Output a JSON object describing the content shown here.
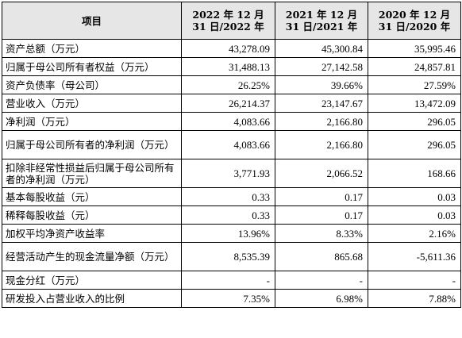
{
  "table": {
    "headers": [
      {
        "line1": "项目",
        "line2": ""
      },
      {
        "line1": "2022 年 12 月",
        "line2": "31 日/2022 年"
      },
      {
        "line1": "2021 年 12 月",
        "line2": "31 日/2021 年"
      },
      {
        "line1": "2020 年 12 月",
        "line2": "31 日/2020 年"
      }
    ],
    "rows": [
      {
        "label": "资产总额（万元）",
        "v2022": "43,278.09",
        "v2021": "45,300.84",
        "v2020": "35,995.46"
      },
      {
        "label": "归属于母公司所有者权益（万元）",
        "v2022": "31,488.13",
        "v2021": "27,142.58",
        "v2020": "24,857.81"
      },
      {
        "label": "资产负债率（母公司）",
        "v2022": "26.25%",
        "v2021": "39.66%",
        "v2020": "27.59%"
      },
      {
        "label": "营业收入（万元）",
        "v2022": "26,214.37",
        "v2021": "23,147.67",
        "v2020": "13,472.09"
      },
      {
        "label": "净利润（万元）",
        "v2022": "4,083.66",
        "v2021": "2,166.80",
        "v2020": "296.05"
      },
      {
        "label": "归属于母公司所有者的净利润（万元）",
        "v2022": "4,083.66",
        "v2021": "2,166.80",
        "v2020": "296.05"
      },
      {
        "label": "扣除非经常性损益后归属于母公司所有者的净利润（万元）",
        "v2022": "3,771.93",
        "v2021": "2,066.52",
        "v2020": "168.66"
      },
      {
        "label": "基本每股收益（元）",
        "v2022": "0.33",
        "v2021": "0.17",
        "v2020": "0.03"
      },
      {
        "label": "稀释每股收益（元）",
        "v2022": "0.33",
        "v2021": "0.17",
        "v2020": "0.03"
      },
      {
        "label": "加权平均净资产收益率",
        "v2022": "13.96%",
        "v2021": "8.33%",
        "v2020": "2.16%"
      },
      {
        "label": "经营活动产生的现金流量净额（万元）",
        "v2022": "8,535.39",
        "v2021": "865.68",
        "v2020": "-5,611.36"
      },
      {
        "label": "现金分红（万元）",
        "v2022": "-",
        "v2021": "-",
        "v2020": "-"
      },
      {
        "label": "研发投入占营业收入的比例",
        "v2022": "7.35%",
        "v2021": "6.98%",
        "v2020": "7.88%"
      }
    ]
  }
}
